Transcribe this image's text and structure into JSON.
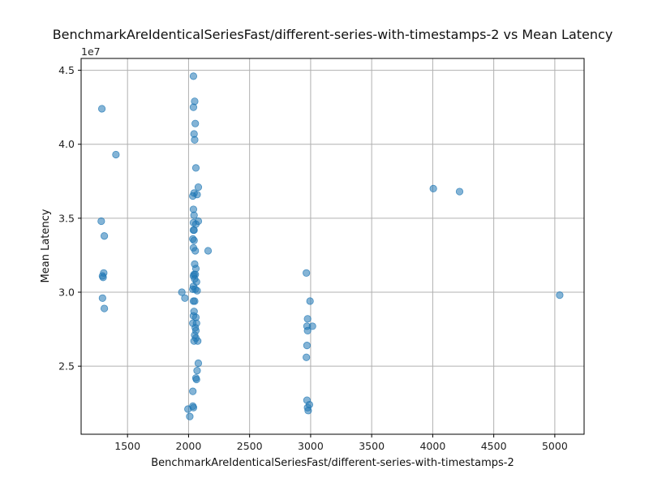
{
  "chart_data": {
    "type": "scatter",
    "title": "BenchmarkAreIdenticalSeriesFast/different-series-with-timestamps-2 vs Mean Latency",
    "xlabel": "BenchmarkAreIdenticalSeriesFast/different-series-with-timestamps-2",
    "ylabel": "Mean Latency",
    "y_offset_label": "1e7",
    "xlim": [
      1120,
      5240
    ],
    "ylim": [
      20400000,
      45800000
    ],
    "x_ticks": [
      1500,
      2000,
      2500,
      3000,
      3500,
      4000,
      4500,
      5000
    ],
    "x_tick_labels": [
      "1500",
      "2000",
      "2500",
      "3000",
      "3500",
      "4000",
      "4500",
      "5000"
    ],
    "y_ticks": [
      25000000,
      30000000,
      35000000,
      40000000,
      45000000
    ],
    "y_tick_labels": [
      "2.5",
      "3.0",
      "3.5",
      "4.0",
      "4.5"
    ],
    "grid": true,
    "marker_color": "#1f77b4",
    "points": [
      {
        "x": 1290,
        "y": 42400000
      },
      {
        "x": 1405,
        "y": 39300000
      },
      {
        "x": 1285,
        "y": 34800000
      },
      {
        "x": 1310,
        "y": 33800000
      },
      {
        "x": 1305,
        "y": 31300000
      },
      {
        "x": 1295,
        "y": 31100000
      },
      {
        "x": 1300,
        "y": 31000000
      },
      {
        "x": 1295,
        "y": 29600000
      },
      {
        "x": 1310,
        "y": 28900000
      },
      {
        "x": 2040,
        "y": 44600000
      },
      {
        "x": 2050,
        "y": 42900000
      },
      {
        "x": 2040,
        "y": 42500000
      },
      {
        "x": 2055,
        "y": 41400000
      },
      {
        "x": 2045,
        "y": 40700000
      },
      {
        "x": 2050,
        "y": 40300000
      },
      {
        "x": 2060,
        "y": 38400000
      },
      {
        "x": 2080,
        "y": 37100000
      },
      {
        "x": 2045,
        "y": 36700000
      },
      {
        "x": 2070,
        "y": 36600000
      },
      {
        "x": 2035,
        "y": 36500000
      },
      {
        "x": 2040,
        "y": 35600000
      },
      {
        "x": 2045,
        "y": 35200000
      },
      {
        "x": 2040,
        "y": 34700000
      },
      {
        "x": 2080,
        "y": 34800000
      },
      {
        "x": 2060,
        "y": 34600000
      },
      {
        "x": 2040,
        "y": 34200000
      },
      {
        "x": 2045,
        "y": 34200000
      },
      {
        "x": 2035,
        "y": 33600000
      },
      {
        "x": 2045,
        "y": 33500000
      },
      {
        "x": 2040,
        "y": 33000000
      },
      {
        "x": 2055,
        "y": 32800000
      },
      {
        "x": 2160,
        "y": 32800000
      },
      {
        "x": 2050,
        "y": 31900000
      },
      {
        "x": 2060,
        "y": 31600000
      },
      {
        "x": 2045,
        "y": 31200000
      },
      {
        "x": 2055,
        "y": 31200000
      },
      {
        "x": 2040,
        "y": 31100000
      },
      {
        "x": 2050,
        "y": 30900000
      },
      {
        "x": 2065,
        "y": 30700000
      },
      {
        "x": 2040,
        "y": 30400000
      },
      {
        "x": 2035,
        "y": 30200000
      },
      {
        "x": 2055,
        "y": 30200000
      },
      {
        "x": 2070,
        "y": 30100000
      },
      {
        "x": 1945,
        "y": 30000000
      },
      {
        "x": 1970,
        "y": 29600000
      },
      {
        "x": 2040,
        "y": 29400000
      },
      {
        "x": 2050,
        "y": 29400000
      },
      {
        "x": 2045,
        "y": 28700000
      },
      {
        "x": 2040,
        "y": 28400000
      },
      {
        "x": 2060,
        "y": 28300000
      },
      {
        "x": 2035,
        "y": 27900000
      },
      {
        "x": 2065,
        "y": 27900000
      },
      {
        "x": 2055,
        "y": 27600000
      },
      {
        "x": 2060,
        "y": 27400000
      },
      {
        "x": 2050,
        "y": 27100000
      },
      {
        "x": 2060,
        "y": 26900000
      },
      {
        "x": 2045,
        "y": 26700000
      },
      {
        "x": 2075,
        "y": 26700000
      },
      {
        "x": 2080,
        "y": 25200000
      },
      {
        "x": 2070,
        "y": 24700000
      },
      {
        "x": 2060,
        "y": 24200000
      },
      {
        "x": 2065,
        "y": 24100000
      },
      {
        "x": 2035,
        "y": 23300000
      },
      {
        "x": 2035,
        "y": 22300000
      },
      {
        "x": 2040,
        "y": 22200000
      },
      {
        "x": 1995,
        "y": 22100000
      },
      {
        "x": 2010,
        "y": 21600000
      },
      {
        "x": 2965,
        "y": 31300000
      },
      {
        "x": 2995,
        "y": 29400000
      },
      {
        "x": 2975,
        "y": 28200000
      },
      {
        "x": 2970,
        "y": 27700000
      },
      {
        "x": 3015,
        "y": 27700000
      },
      {
        "x": 2975,
        "y": 27400000
      },
      {
        "x": 2970,
        "y": 26400000
      },
      {
        "x": 2965,
        "y": 25600000
      },
      {
        "x": 2970,
        "y": 22700000
      },
      {
        "x": 2990,
        "y": 22400000
      },
      {
        "x": 2975,
        "y": 22200000
      },
      {
        "x": 2980,
        "y": 22000000
      },
      {
        "x": 4005,
        "y": 37000000
      },
      {
        "x": 4220,
        "y": 36800000
      },
      {
        "x": 5040,
        "y": 29800000
      }
    ]
  }
}
